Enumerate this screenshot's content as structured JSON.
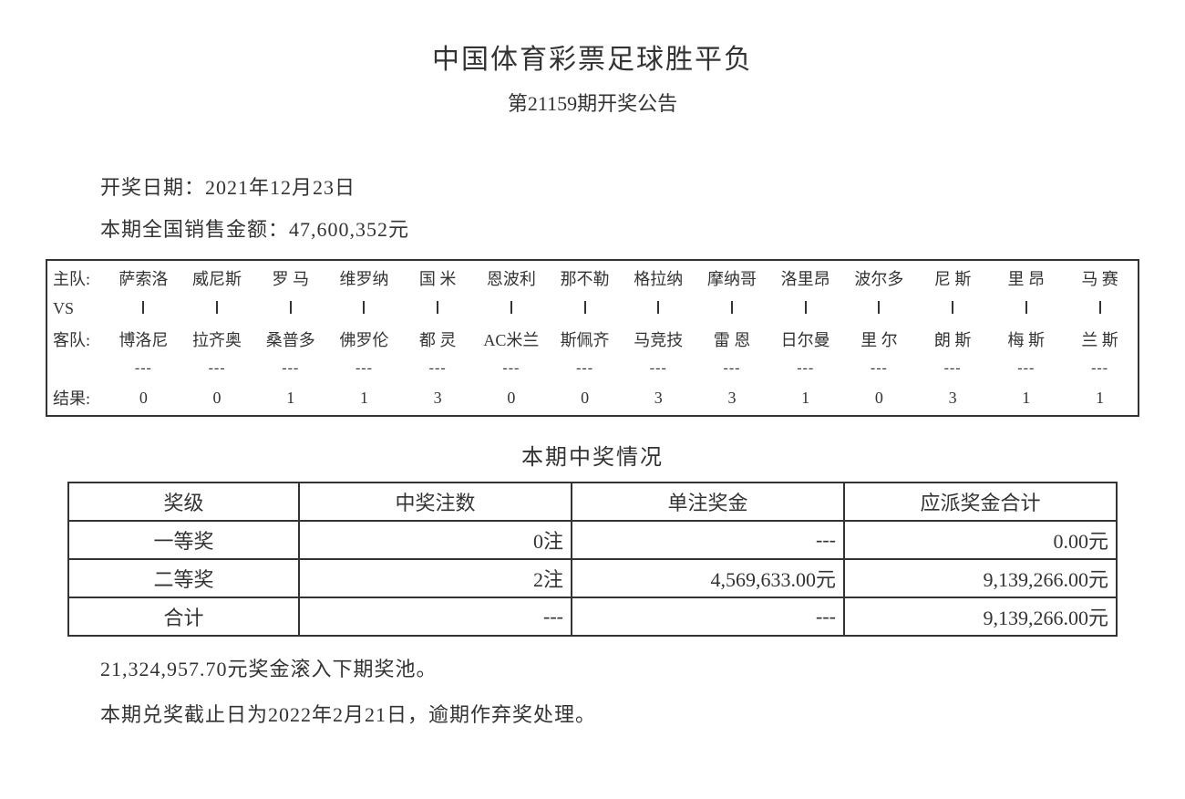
{
  "header": {
    "title_main": "中国体育彩票足球胜平负",
    "subtitle": "第21159期开奖公告"
  },
  "info": {
    "draw_date_label": "开奖日期：",
    "draw_date_value": "2021年12月23日",
    "sales_label": "本期全国销售金额：",
    "sales_value": "47,600,352元"
  },
  "match_table": {
    "row_labels": {
      "home": "主队:",
      "vs": "VS",
      "away": "客队:",
      "result": "结果:"
    },
    "columns": [
      {
        "home": "萨索洛",
        "away": "博洛尼",
        "result": "0"
      },
      {
        "home": "威尼斯",
        "away": "拉齐奥",
        "result": "0"
      },
      {
        "home": "罗 马",
        "away": "桑普多",
        "result": "1"
      },
      {
        "home": "维罗纳",
        "away": "佛罗伦",
        "result": "1"
      },
      {
        "home": "国 米",
        "away": "都 灵",
        "result": "3"
      },
      {
        "home": "恩波利",
        "away": "AC米兰",
        "result": "0"
      },
      {
        "home": "那不勒",
        "away": "斯佩齐",
        "result": "0"
      },
      {
        "home": "格拉纳",
        "away": "马竞技",
        "result": "3"
      },
      {
        "home": "摩纳哥",
        "away": "雷 恩",
        "result": "3"
      },
      {
        "home": "洛里昂",
        "away": "日尔曼",
        "result": "1"
      },
      {
        "home": "波尔多",
        "away": "里 尔",
        "result": "0"
      },
      {
        "home": "尼 斯",
        "away": "朗 斯",
        "result": "3"
      },
      {
        "home": "里 昂",
        "away": "梅 斯",
        "result": "1"
      },
      {
        "home": "马 赛",
        "away": "兰 斯",
        "result": "1"
      }
    ]
  },
  "prize_section": {
    "title": "本期中奖情况",
    "headers": [
      "奖级",
      "中奖注数",
      "单注奖金",
      "应派奖金合计"
    ],
    "rows": [
      {
        "level": "一等奖",
        "count": "0注",
        "unit": "---",
        "total": "0.00元"
      },
      {
        "level": "二等奖",
        "count": "2注",
        "unit": "4,569,633.00元",
        "total": "9,139,266.00元"
      },
      {
        "level": "合计",
        "count": "---",
        "unit": "---",
        "total": "9,139,266.00元"
      }
    ]
  },
  "notes": {
    "rollover": "21,324,957.70元奖金滚入下期奖池。",
    "deadline": "本期兑奖截止日为2022年2月21日，逾期作弃奖处理。"
  },
  "style": {
    "text_color": "#333333",
    "border_color": "#333333",
    "background": "#ffffff",
    "title_fontsize": 30,
    "subtitle_fontsize": 22,
    "body_fontsize": 22,
    "match_fontsize": 18
  }
}
